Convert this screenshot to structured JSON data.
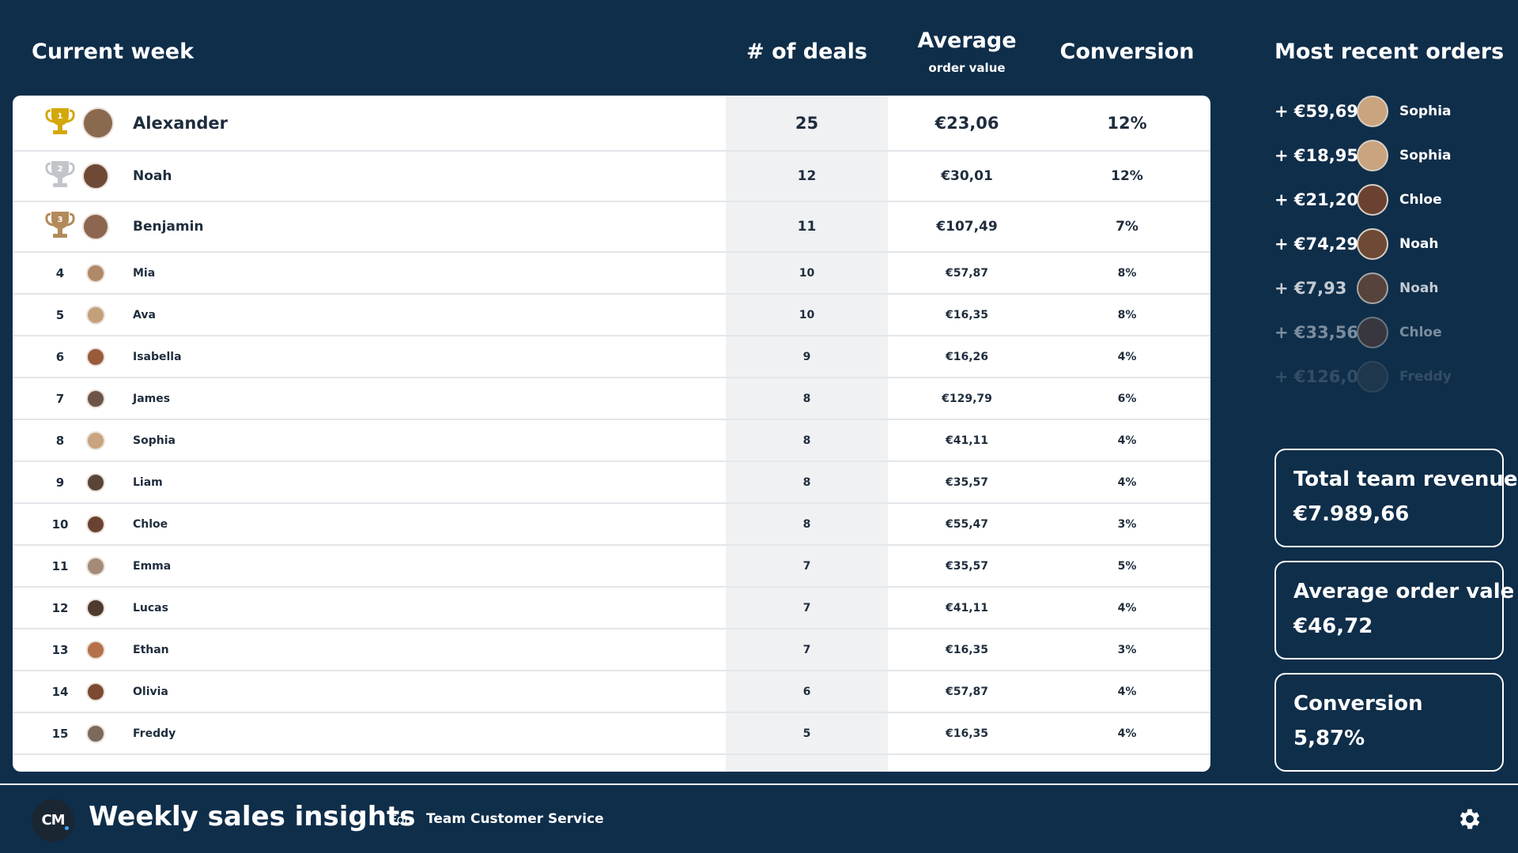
{
  "header": {
    "title": "Current week",
    "col_deals": "# of deals",
    "col_avg": "Average",
    "col_avg_sub": "order value",
    "col_conversion": "Conversion"
  },
  "leaderboard": [
    {
      "rank": "1",
      "name": "Alexander",
      "deals": "25",
      "avg": "€23,06",
      "conversion": "12%",
      "avatar_color": "#8a6a4f"
    },
    {
      "rank": "2",
      "name": "Noah",
      "deals": "12",
      "avg": "€30,01",
      "conversion": "12%",
      "avatar_color": "#6e4a36"
    },
    {
      "rank": "3",
      "name": "Benjamin",
      "deals": "11",
      "avg": "€107,49",
      "conversion": "7%",
      "avatar_color": "#8d6650"
    },
    {
      "rank": "4",
      "name": "Mia",
      "deals": "10",
      "avg": "€57,87",
      "conversion": "8%",
      "avatar_color": "#b08968"
    },
    {
      "rank": "5",
      "name": "Ava",
      "deals": "10",
      "avg": "€16,35",
      "conversion": "8%",
      "avatar_color": "#c4a07a"
    },
    {
      "rank": "6",
      "name": "Isabella",
      "deals": "9",
      "avg": "€16,26",
      "conversion": "4%",
      "avatar_color": "#9a5a3c"
    },
    {
      "rank": "7",
      "name": "James",
      "deals": "8",
      "avg": "€129,79",
      "conversion": "6%",
      "avatar_color": "#6d5448"
    },
    {
      "rank": "8",
      "name": "Sophia",
      "deals": "8",
      "avg": "€41,11",
      "conversion": "4%",
      "avatar_color": "#c9a47e"
    },
    {
      "rank": "9",
      "name": "Liam",
      "deals": "8",
      "avg": "€35,57",
      "conversion": "4%",
      "avatar_color": "#5a4438"
    },
    {
      "rank": "10",
      "name": "Chloe",
      "deals": "8",
      "avg": "€55,47",
      "conversion": "3%",
      "avatar_color": "#6b4232"
    },
    {
      "rank": "11",
      "name": "Emma",
      "deals": "7",
      "avg": "€35,57",
      "conversion": "5%",
      "avatar_color": "#a58a78"
    },
    {
      "rank": "12",
      "name": "Lucas",
      "deals": "7",
      "avg": "€41,11",
      "conversion": "4%",
      "avatar_color": "#4e3a2e"
    },
    {
      "rank": "13",
      "name": "Ethan",
      "deals": "7",
      "avg": "€16,35",
      "conversion": "3%",
      "avatar_color": "#b5704a"
    },
    {
      "rank": "14",
      "name": "Olivia",
      "deals": "6",
      "avg": "€57,87",
      "conversion": "4%",
      "avatar_color": "#7a4a33"
    },
    {
      "rank": "15",
      "name": "Freddy",
      "deals": "5",
      "avg": "€16,35",
      "conversion": "4%",
      "avatar_color": "#7b6a5c"
    }
  ],
  "recent": {
    "title": "Most recent orders",
    "orders": [
      {
        "amount": "+ €59,69",
        "name": "Sophia",
        "avatar_color": "#c9a47e",
        "opacity": 1
      },
      {
        "amount": "+ €18,95",
        "name": "Sophia",
        "avatar_color": "#c9a47e",
        "opacity": 1
      },
      {
        "amount": "+ €21,20",
        "name": "Chloe",
        "avatar_color": "#6b4232",
        "opacity": 1
      },
      {
        "amount": "+ €74,29",
        "name": "Noah",
        "avatar_color": "#6e4a36",
        "opacity": 1
      },
      {
        "amount": "+ €7,93",
        "name": "Noah",
        "avatar_color": "#6e4a36",
        "opacity": 0.75
      },
      {
        "amount": "+ €33,56",
        "name": "Chloe",
        "avatar_color": "#6b4232",
        "opacity": 0.45
      },
      {
        "amount": "+ €126,07",
        "name": "Freddy",
        "avatar_color": "#7b6a5c",
        "opacity": 0.15
      }
    ]
  },
  "kpis": [
    {
      "label": "Total team revenue",
      "value": "€7.989,66"
    },
    {
      "label": "Average order vale",
      "value": "€46,72"
    },
    {
      "label": "Conversion",
      "value": "5,87%"
    }
  ],
  "footer": {
    "logo_text": "CM",
    "title": "Weekly sales insights",
    "for_label": "For:",
    "team": "Team Customer Service",
    "settings_icon": "gear-icon"
  },
  "colors": {
    "background": "#0f2e4a",
    "gold": "#d4a80a",
    "silver": "#c2c5c9",
    "bronze": "#b38a5a"
  }
}
